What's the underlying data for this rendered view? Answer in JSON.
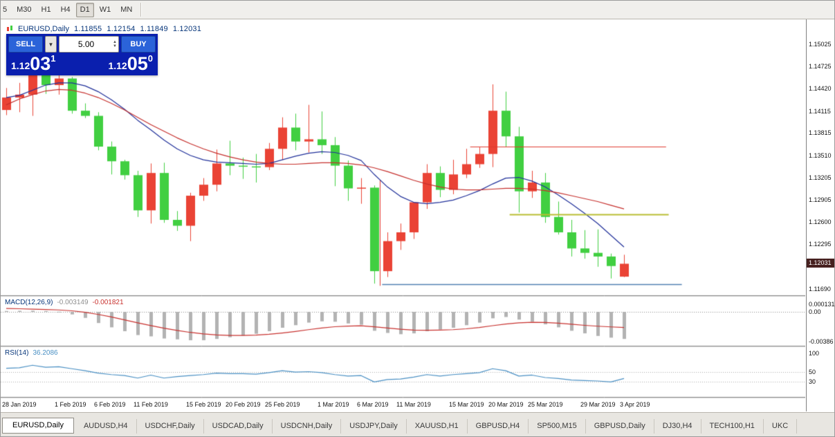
{
  "toolbar": {
    "timeframes": [
      {
        "label": "5",
        "active": false
      },
      {
        "label": "M30",
        "active": false
      },
      {
        "label": "H1",
        "active": false
      },
      {
        "label": "H4",
        "active": false
      },
      {
        "label": "D1",
        "active": true
      },
      {
        "label": "W1",
        "active": false
      },
      {
        "label": "MN",
        "active": false
      }
    ]
  },
  "chart_header": {
    "symbol": "EURUSD,Daily",
    "open": "1.11855",
    "high": "1.12154",
    "low": "1.11849",
    "close": "1.12031"
  },
  "trade_panel": {
    "sell_label": "SELL",
    "buy_label": "BUY",
    "volume": "5.00",
    "bid_base": "1.12",
    "bid_big": "03",
    "bid_sup": "1",
    "ask_base": "1.12",
    "ask_big": "05",
    "ask_sup": "0"
  },
  "price_axis": {
    "labels": [
      "1.15025",
      "1.14725",
      "1.14420",
      "1.14115",
      "1.13815",
      "1.13510",
      "1.13205",
      "1.12905",
      "1.12600",
      "1.12295",
      "1.11690"
    ],
    "current": "1.12031"
  },
  "macd_panel": {
    "name": "MACD(12,26,9)",
    "main_value": "-0.003149",
    "signal_value": "-0.001821",
    "scale_top": "0.0001313",
    "scale_zero": "0.00",
    "scale_bottom": "-0.00386"
  },
  "rsi_panel": {
    "name": "RSI(14)",
    "value": "36.2086",
    "scale": [
      100,
      50,
      30
    ]
  },
  "date_axis": [
    {
      "i": 0,
      "t": "28 Jan 2019"
    },
    {
      "i": 4,
      "t": "1 Feb 2019"
    },
    {
      "i": 7,
      "t": "6 Feb 2019"
    },
    {
      "i": 10,
      "t": "11 Feb 2019"
    },
    {
      "i": 14,
      "t": "15 Feb 2019"
    },
    {
      "i": 17,
      "t": "20 Feb 2019"
    },
    {
      "i": 20,
      "t": "25 Feb 2019"
    },
    {
      "i": 24,
      "t": "1 Mar 2019"
    },
    {
      "i": 27,
      "t": "6 Mar 2019"
    },
    {
      "i": 30,
      "t": "11 Mar 2019"
    },
    {
      "i": 34,
      "t": "15 Mar 2019"
    },
    {
      "i": 37,
      "t": "20 Mar 2019"
    },
    {
      "i": 40,
      "t": "25 Mar 2019"
    },
    {
      "i": 44,
      "t": "29 Mar 2019"
    },
    {
      "i": 47,
      "t": "3 Apr 2019"
    }
  ],
  "tabs": [
    {
      "label": "EURUSD,Daily",
      "active": true
    },
    {
      "label": "AUDUSD,H4",
      "active": false
    },
    {
      "label": "USDCHF,Daily",
      "active": false
    },
    {
      "label": "USDCAD,Daily",
      "active": false
    },
    {
      "label": "USDCNH,Daily",
      "active": false
    },
    {
      "label": "USDJPY,Daily",
      "active": false
    },
    {
      "label": "XAUUSD,H1",
      "active": false
    },
    {
      "label": "GBPUSD,H4",
      "active": false
    },
    {
      "label": "SP500,M15",
      "active": false
    },
    {
      "label": "GBPUSD,Daily",
      "active": false
    },
    {
      "label": "DJ30,H4",
      "active": false
    },
    {
      "label": "TECH100,H1",
      "active": false
    },
    {
      "label": "UKC",
      "active": false
    }
  ],
  "colors": {
    "bull": "#ea4335",
    "bear": "#41cf41",
    "ma_red": "#c62f2c",
    "ma_navy": "#20309a",
    "hline_red": "#e03a2f",
    "hline_yellow": "#b9bd33",
    "hline_blue": "#4f81b2",
    "macd_bar": "#b3b3b3",
    "macd_signal": "#c8312e",
    "rsi_line": "#4a90c4",
    "zero_line": "#8a8a8a",
    "panel_sep": "#8a8a8a",
    "badge_bg": "#46201f",
    "button_blue": "#2b63d9",
    "panel_bg": "#0a1fae"
  },
  "chart_data": {
    "type": "candlestick",
    "symbol": "EURUSD",
    "timeframe": "Daily",
    "price_range": {
      "top": 1.1532,
      "bottom": 1.1162
    },
    "dates": [
      "2019-01-28",
      "2019-01-29",
      "2019-01-30",
      "2019-01-31",
      "2019-02-01",
      "2019-02-04",
      "2019-02-05",
      "2019-02-06",
      "2019-02-07",
      "2019-02-08",
      "2019-02-11",
      "2019-02-12",
      "2019-02-13",
      "2019-02-14",
      "2019-02-15",
      "2019-02-18",
      "2019-02-19",
      "2019-02-20",
      "2019-02-21",
      "2019-02-22",
      "2019-02-25",
      "2019-02-26",
      "2019-02-27",
      "2019-02-28",
      "2019-03-01",
      "2019-03-04",
      "2019-03-05",
      "2019-03-06",
      "2019-03-07",
      "2019-03-08",
      "2019-03-11",
      "2019-03-12",
      "2019-03-13",
      "2019-03-14",
      "2019-03-15",
      "2019-03-18",
      "2019-03-19",
      "2019-03-20",
      "2019-03-21",
      "2019-03-22",
      "2019-03-25",
      "2019-03-26",
      "2019-03-27",
      "2019-03-28",
      "2019-03-29",
      "2019-04-01",
      "2019-04-02",
      "2019-04-03"
    ],
    "candles": [
      [
        1.1413,
        1.1443,
        1.1406,
        1.143
      ],
      [
        1.143,
        1.145,
        1.141,
        1.1434
      ],
      [
        1.1434,
        1.1502,
        1.1405,
        1.1481
      ],
      [
        1.1481,
        1.1514,
        1.1435,
        1.1447
      ],
      [
        1.1447,
        1.1488,
        1.1434,
        1.1456
      ],
      [
        1.1456,
        1.1458,
        1.1408,
        1.1412
      ],
      [
        1.1412,
        1.1422,
        1.1402,
        1.1405
      ],
      [
        1.1405,
        1.141,
        1.1358,
        1.1363
      ],
      [
        1.1363,
        1.137,
        1.1325,
        1.1343
      ],
      [
        1.1343,
        1.1345,
        1.1318,
        1.1324
      ],
      [
        1.1324,
        1.133,
        1.1267,
        1.1276
      ],
      [
        1.1276,
        1.134,
        1.1258,
        1.1327
      ],
      [
        1.1327,
        1.1341,
        1.1259,
        1.1263
      ],
      [
        1.1263,
        1.1275,
        1.1248,
        1.1255
      ],
      [
        1.1255,
        1.13,
        1.1234,
        1.1296
      ],
      [
        1.1296,
        1.132,
        1.1289,
        1.1311
      ],
      [
        1.1311,
        1.1359,
        1.1302,
        1.134
      ],
      [
        1.134,
        1.1371,
        1.1324,
        1.1337
      ],
      [
        1.1337,
        1.1348,
        1.1319,
        1.1336
      ],
      [
        1.1336,
        1.1353,
        1.1314,
        1.1335
      ],
      [
        1.1335,
        1.1368,
        1.1331,
        1.136
      ],
      [
        1.136,
        1.1403,
        1.1345,
        1.1389
      ],
      [
        1.1389,
        1.1408,
        1.1358,
        1.137
      ],
      [
        1.137,
        1.142,
        1.1355,
        1.1373
      ],
      [
        1.1373,
        1.1411,
        1.1353,
        1.1365
      ],
      [
        1.1365,
        1.1376,
        1.1309,
        1.1337
      ],
      [
        1.1337,
        1.1344,
        1.1289,
        1.1306
      ],
      [
        1.1306,
        1.132,
        1.1285,
        1.1307
      ],
      [
        1.1307,
        1.131,
        1.1176,
        1.1193
      ],
      [
        1.1193,
        1.1246,
        1.1185,
        1.1234
      ],
      [
        1.1234,
        1.1258,
        1.1222,
        1.1246
      ],
      [
        1.1246,
        1.1287,
        1.1237,
        1.1287
      ],
      [
        1.1287,
        1.1339,
        1.1278,
        1.1327
      ],
      [
        1.1327,
        1.1336,
        1.1294,
        1.1304
      ],
      [
        1.1304,
        1.1345,
        1.1298,
        1.1325
      ],
      [
        1.1325,
        1.136,
        1.132,
        1.1339
      ],
      [
        1.1339,
        1.1362,
        1.1334,
        1.1353
      ],
      [
        1.1353,
        1.1448,
        1.1335,
        1.1412
      ],
      [
        1.1412,
        1.1438,
        1.1363,
        1.1377
      ],
      [
        1.1377,
        1.139,
        1.1273,
        1.1302
      ],
      [
        1.1302,
        1.133,
        1.1293,
        1.1314
      ],
      [
        1.1314,
        1.1327,
        1.1259,
        1.1267
      ],
      [
        1.1267,
        1.1288,
        1.1243,
        1.1246
      ],
      [
        1.1246,
        1.1263,
        1.1213,
        1.1224
      ],
      [
        1.1224,
        1.1249,
        1.121,
        1.1218
      ],
      [
        1.1218,
        1.125,
        1.1199,
        1.1213
      ],
      [
        1.1213,
        1.1217,
        1.1183,
        1.12
      ],
      [
        1.11855,
        1.12154,
        1.11849,
        1.12031
      ]
    ],
    "ma_red": [
      1.142,
      1.1428,
      1.1434,
      1.1439,
      1.1441,
      1.144,
      1.1436,
      1.143,
      1.1422,
      1.1413,
      1.1403,
      1.1393,
      1.1384,
      1.1375,
      1.1367,
      1.136,
      1.1354,
      1.1349,
      1.1345,
      1.1342,
      1.134,
      1.1339,
      1.1339,
      1.134,
      1.1341,
      1.1341,
      1.134,
      1.1338,
      1.1334,
      1.1329,
      1.1323,
      1.1317,
      1.1312,
      1.1308,
      1.1305,
      1.1304,
      1.1304,
      1.1305,
      1.1306,
      1.1306,
      1.1305,
      1.1303,
      1.13,
      1.1296,
      1.1292,
      1.1288,
      1.1283,
      1.1278
    ],
    "ma_navy": [
      1.143,
      1.1433,
      1.144,
      1.1447,
      1.145,
      1.145,
      1.1446,
      1.1438,
      1.1427,
      1.1414,
      1.1399,
      1.1386,
      1.1372,
      1.136,
      1.1351,
      1.1345,
      1.1342,
      1.1341,
      1.134,
      1.1339,
      1.134,
      1.1345,
      1.135,
      1.1354,
      1.1356,
      1.1355,
      1.1351,
      1.1344,
      1.1325,
      1.1308,
      1.1295,
      1.1287,
      1.1285,
      1.1287,
      1.129,
      1.1296,
      1.1303,
      1.1312,
      1.132,
      1.1321,
      1.1316,
      1.1308,
      1.1297,
      1.1285,
      1.1272,
      1.1258,
      1.1242,
      1.1226
    ],
    "macd": {
      "params": [
        12,
        26,
        9
      ],
      "scale_min": -0.00386,
      "hist": [
        0.0001,
        0.00012,
        0.00013,
        9e-05,
        2e-05,
        -0.0003,
        -0.0007,
        -0.0013,
        -0.0018,
        -0.00225,
        -0.0027,
        -0.00285,
        -0.0031,
        -0.0032,
        -0.0033,
        -0.0033,
        -0.00315,
        -0.00295,
        -0.00275,
        -0.00255,
        -0.00225,
        -0.00185,
        -0.00155,
        -0.00125,
        -0.0011,
        -0.00115,
        -0.00135,
        -0.0015,
        -0.0022,
        -0.00245,
        -0.0026,
        -0.0025,
        -0.00225,
        -0.00205,
        -0.00185,
        -0.00155,
        -0.00125,
        -0.00075,
        -0.0006,
        -0.0009,
        -0.00115,
        -0.00145,
        -0.0018,
        -0.0022,
        -0.0025,
        -0.0028,
        -0.003,
        -0.003149
      ],
      "signal": [
        0.0004,
        0.00036,
        0.00031,
        0.00027,
        0.00022,
        0.00012,
        -5e-05,
        -0.0003,
        -0.0006,
        -0.00093,
        -0.00128,
        -0.0016,
        -0.0019,
        -0.00216,
        -0.00239,
        -0.00257,
        -0.00269,
        -0.00274,
        -0.00274,
        -0.0027,
        -0.00261,
        -0.00246,
        -0.00228,
        -0.00207,
        -0.00188,
        -0.00173,
        -0.00166,
        -0.00162,
        -0.00174,
        -0.00188,
        -0.00202,
        -0.00212,
        -0.00214,
        -0.00212,
        -0.00207,
        -0.00197,
        -0.00182,
        -0.00161,
        -0.00141,
        -0.00128,
        -0.00122,
        -0.00124,
        -0.00132,
        -0.00144,
        -0.00157,
        -0.00167,
        -0.00175,
        -0.001821
      ]
    },
    "rsi": {
      "params": [
        14
      ],
      "levels": [
        50,
        30
      ],
      "values": [
        57,
        58,
        63,
        59,
        60,
        56,
        52,
        47,
        44,
        42,
        37,
        43,
        37,
        40,
        42,
        44,
        47,
        46,
        46,
        45,
        48,
        52,
        49,
        50,
        48,
        44,
        41,
        42,
        29,
        34,
        35,
        39,
        44,
        41,
        44,
        46,
        48,
        56,
        52,
        41,
        43,
        38,
        36,
        33,
        32,
        31,
        29,
        36.2
      ]
    },
    "hlines": [
      {
        "price": 1.1363,
        "from_idx": 35.3,
        "to_idx": 50.2,
        "color_key": "hline_red",
        "width": 1
      },
      {
        "price": 1.1271,
        "from_idx": 38.3,
        "to_idx": 50.4,
        "color_key": "hline_yellow",
        "width": 2
      },
      {
        "price": 1.1175,
        "from_idx": 28.6,
        "to_idx": 51.4,
        "color_key": "hline_blue",
        "width": 1.5
      }
    ],
    "vlines": [
      {
        "idx": 28.4,
        "p1": 1.1317,
        "p2": 1.1173,
        "color_key": "hline_red",
        "width": 1
      }
    ]
  }
}
